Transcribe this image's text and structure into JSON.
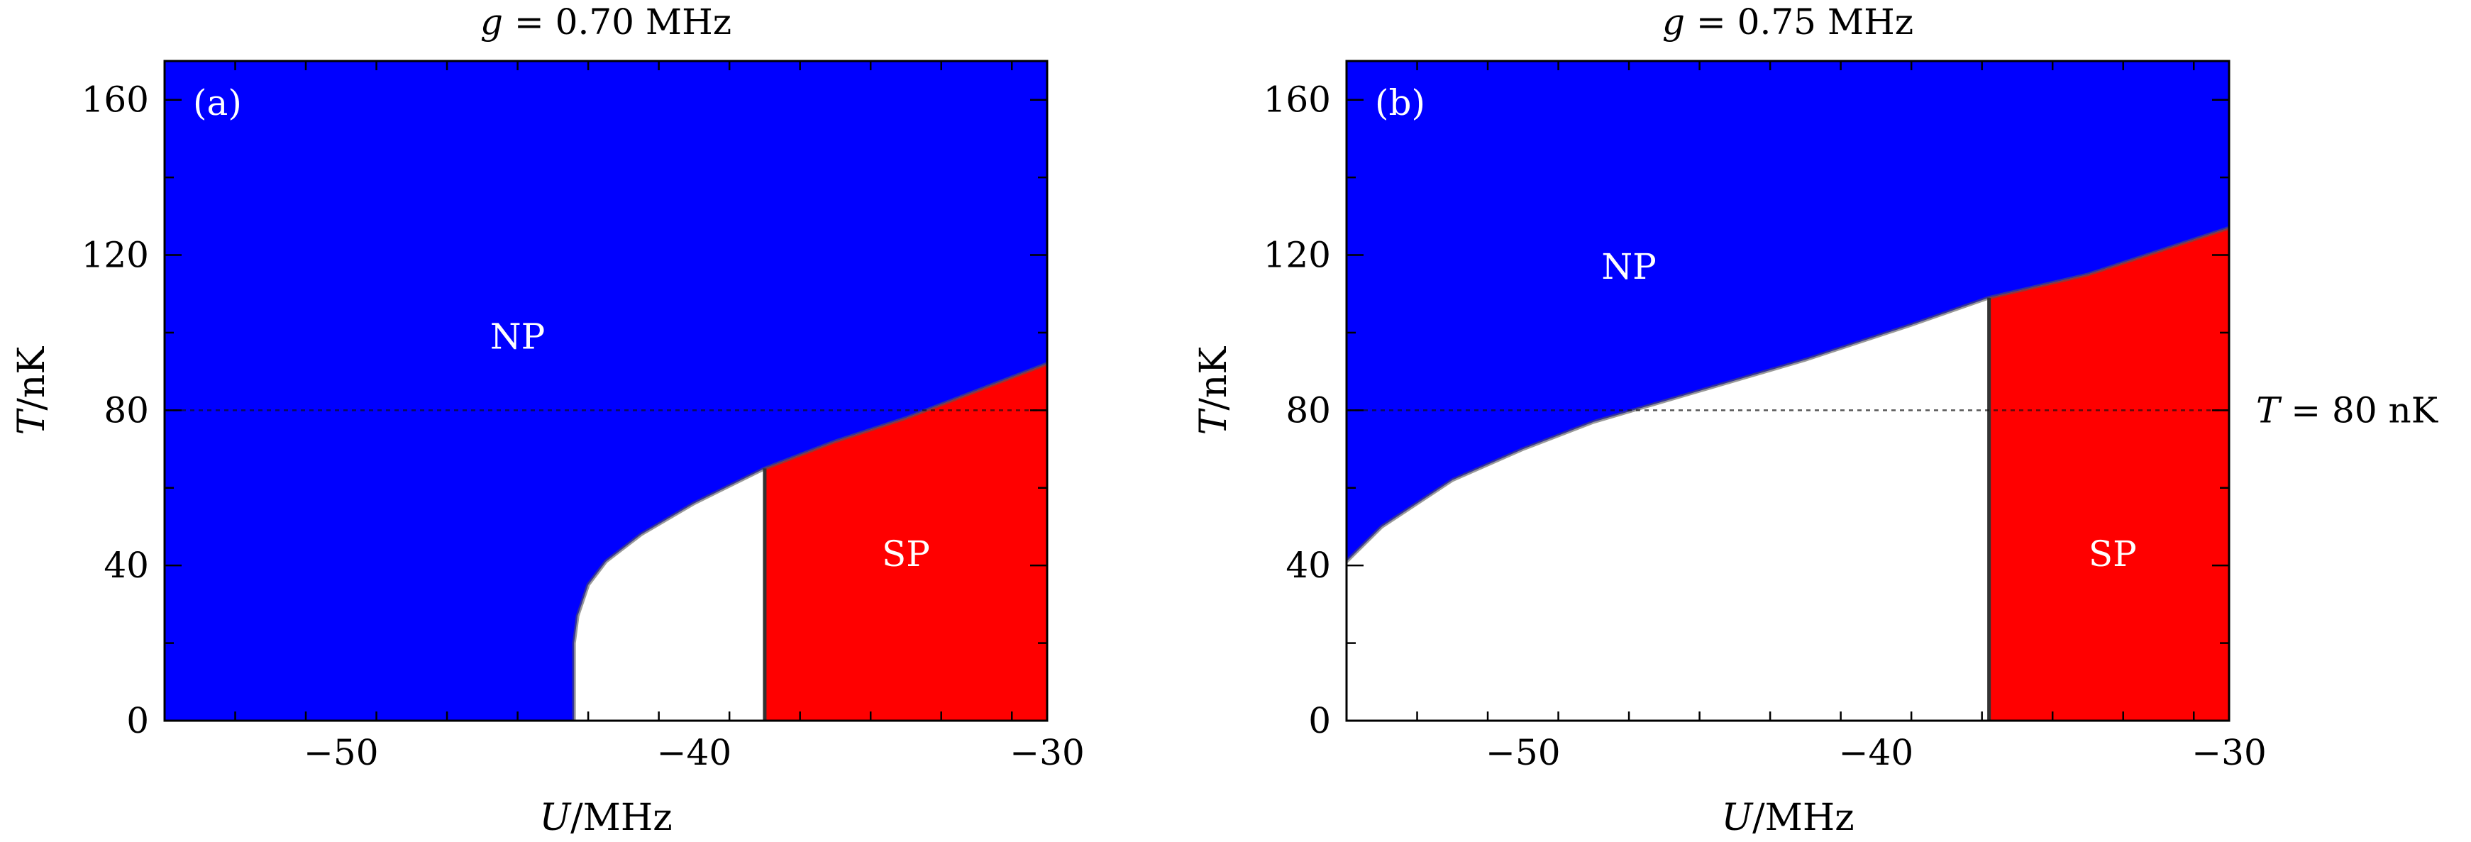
{
  "chart_data": [
    {
      "type": "area",
      "panel_label": "(a)",
      "title": "g = 0.70 MHz",
      "title_var": "g",
      "title_rest": " = 0.70 MHz",
      "xlabel_var": "U",
      "xlabel_rest": "/MHz",
      "ylabel_var": "T",
      "ylabel_rest": "/nK",
      "xlim": [
        -55,
        -30
      ],
      "ylim": [
        0,
        170
      ],
      "xticks": [
        -50,
        -40,
        -30
      ],
      "xtick_labels": [
        "−50",
        "−40",
        "−30"
      ],
      "yticks": [
        0,
        40,
        80,
        120,
        160
      ],
      "ytick_labels": [
        "0",
        "40",
        "80",
        "120",
        "160"
      ],
      "colors": {
        "NP": "#0000ff",
        "SP": "#ff0000",
        "background": "#ffffff"
      },
      "boundary_curve": {
        "x": [
          -43.4,
          -43.4,
          -43.3,
          -43.0,
          -42.5,
          -41.5,
          -40.0,
          -38.0,
          -36.0,
          -34.0,
          -32.0,
          -30.0
        ],
        "y": [
          0,
          20,
          27,
          35,
          41,
          48,
          56,
          65,
          72,
          78,
          85,
          92
        ]
      },
      "sp_vertical_boundary_x": -38.0,
      "reference_line_y": 80,
      "regions": [
        {
          "name": "NP",
          "x": -45.0,
          "y": 99
        },
        {
          "name": "SP",
          "x": -34.0,
          "y": 43
        }
      ]
    },
    {
      "type": "area",
      "panel_label": "(b)",
      "title": "g = 0.75 MHz",
      "title_var": "g",
      "title_rest": " = 0.75 MHz",
      "xlabel_var": "U",
      "xlabel_rest": "/MHz",
      "ylabel_var": "T",
      "ylabel_rest": "/nK",
      "xlim": [
        -55,
        -30
      ],
      "ylim": [
        0,
        170
      ],
      "xticks": [
        -50,
        -40,
        -30
      ],
      "xtick_labels": [
        "−50",
        "−40",
        "−30"
      ],
      "yticks": [
        0,
        40,
        80,
        120,
        160
      ],
      "ytick_labels": [
        "0",
        "40",
        "80",
        "120",
        "160"
      ],
      "colors": {
        "NP": "#0000ff",
        "SP": "#ff0000",
        "background": "#ffffff"
      },
      "boundary_curve": {
        "x": [
          -55.0,
          -54.0,
          -52.0,
          -50.0,
          -48.0,
          -45.0,
          -42.0,
          -39.0,
          -36.8,
          -34.0,
          -32.0,
          -30.0
        ],
        "y": [
          41,
          50,
          62,
          70,
          77,
          85,
          93,
          102,
          109,
          115,
          121,
          127
        ]
      },
      "sp_vertical_boundary_x": -36.8,
      "reference_line_y": 80,
      "reference_label": "T = 80 nK",
      "reference_label_var": "T",
      "reference_label_rest": " = 80 nK",
      "regions": [
        {
          "name": "NP",
          "x": -47.0,
          "y": 117
        },
        {
          "name": "SP",
          "x": -33.3,
          "y": 43
        }
      ]
    }
  ]
}
